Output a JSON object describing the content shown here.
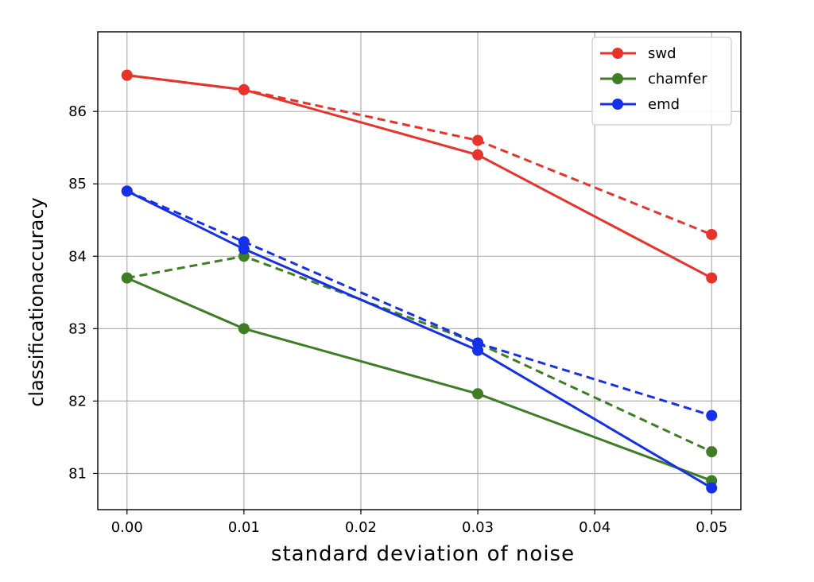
{
  "chart_data": {
    "type": "line",
    "xlabel": "standard deviation of noise",
    "ylabel": "classificationaccuracy",
    "xlim": [
      -0.0025,
      0.0525
    ],
    "ylim": [
      80.5,
      87.1
    ],
    "xticks": [
      0.0,
      0.01,
      0.02,
      0.03,
      0.04,
      0.05
    ],
    "xtick_labels": [
      "0.00",
      "0.01",
      "0.02",
      "0.03",
      "0.04",
      "0.05"
    ],
    "yticks": [
      81,
      82,
      83,
      84,
      85,
      86
    ],
    "ytick_labels": [
      "81",
      "82",
      "83",
      "84",
      "85",
      "86"
    ],
    "grid": true,
    "legend_position": "top-right",
    "x": [
      0.0,
      0.01,
      0.03,
      0.05
    ],
    "series": [
      {
        "name": "swd",
        "color": "#e8332a",
        "style": "solid",
        "in_legend": true,
        "values": [
          86.5,
          86.3,
          85.4,
          83.7
        ]
      },
      {
        "name": "chamfer",
        "color": "#3e7d24",
        "style": "solid",
        "in_legend": true,
        "values": [
          83.7,
          83.0,
          82.1,
          80.9
        ]
      },
      {
        "name": "emd",
        "color": "#1530e8",
        "style": "solid",
        "in_legend": true,
        "values": [
          84.9,
          84.1,
          82.7,
          80.8
        ]
      },
      {
        "color": "#e8332a",
        "style": "dashed",
        "in_legend": false,
        "values": [
          86.5,
          86.3,
          85.6,
          84.3
        ]
      },
      {
        "color": "#3e7d24",
        "style": "dashed",
        "in_legend": false,
        "values": [
          83.7,
          84.0,
          82.8,
          81.3
        ]
      },
      {
        "color": "#1530e8",
        "style": "dashed",
        "in_legend": false,
        "values": [
          84.9,
          84.2,
          82.8,
          81.8
        ]
      }
    ]
  }
}
